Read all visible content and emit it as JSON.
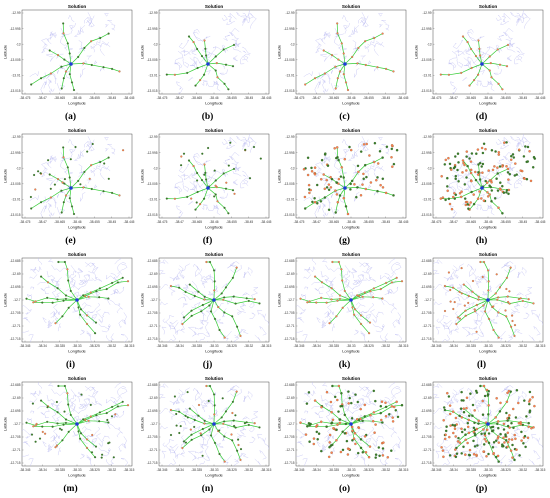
{
  "panels": [
    {
      "caption": "(a)",
      "title": "Solution",
      "xlabel": "Longitude",
      "ylabel": "Latitude",
      "xticks": [
        "-38.475",
        "-38.47",
        "-38.465",
        "-38.46",
        "-38.455",
        "-38.45",
        "-38.445"
      ],
      "yticks": [
        "-12.99",
        "-12.995",
        "-13",
        "-13.005",
        "-13.01",
        "-13.015"
      ],
      "density": "low",
      "mode": "green"
    },
    {
      "caption": "(b)",
      "title": "Solution",
      "xlabel": "Longitude",
      "ylabel": "Latitude",
      "xticks": [
        "-38.475",
        "-38.47",
        "-38.465",
        "-38.46",
        "-38.455",
        "-38.45",
        "-38.445"
      ],
      "yticks": [
        "-12.99",
        "-12.995",
        "-13",
        "-13.005",
        "-13.01",
        "-13.015"
      ],
      "density": "low",
      "mode": "green"
    },
    {
      "caption": "(c)",
      "title": "Solution",
      "xlabel": "Longitude",
      "ylabel": "Latitude",
      "xticks": [
        "-38.475",
        "-38.47",
        "-38.465",
        "-38.46",
        "-38.455",
        "-38.45",
        "-38.445"
      ],
      "yticks": [
        "-12.99",
        "-12.995",
        "-13",
        "-13.005",
        "-13.01",
        "-13.015"
      ],
      "density": "low",
      "mode": "orange"
    },
    {
      "caption": "(d)",
      "title": "Solution",
      "xlabel": "Longitude",
      "ylabel": "Latitude",
      "xticks": [
        "-38.475",
        "-38.47",
        "-38.465",
        "-38.46",
        "-38.455",
        "-38.45",
        "-38.445"
      ],
      "yticks": [
        "-12.99",
        "-12.995",
        "-13",
        "-13.005",
        "-13.01",
        "-13.015"
      ],
      "density": "low",
      "mode": "orange"
    },
    {
      "caption": "(e)",
      "title": "Solution",
      "xlabel": "Longitude",
      "ylabel": "Latitude",
      "xticks": [
        "-38.475",
        "-38.47",
        "-38.465",
        "-38.46",
        "-38.455",
        "-38.45",
        "-38.445"
      ],
      "yticks": [
        "-12.99",
        "-12.995",
        "-13",
        "-13.005",
        "-13.01",
        "-13.015"
      ],
      "density": "mid",
      "mode": "green"
    },
    {
      "caption": "(f)",
      "title": "Solution",
      "xlabel": "Longitude",
      "ylabel": "Latitude",
      "xticks": [
        "-38.475",
        "-38.47",
        "-38.465",
        "-38.46",
        "-38.455",
        "-38.45",
        "-38.445"
      ],
      "yticks": [
        "-12.99",
        "-12.995",
        "-13",
        "-13.005",
        "-13.01",
        "-13.015"
      ],
      "density": "mid",
      "mode": "green"
    },
    {
      "caption": "(g)",
      "title": "Solution",
      "xlabel": "Longitude",
      "ylabel": "Latitude",
      "xticks": [
        "-38.475",
        "-38.47",
        "-38.465",
        "-38.46",
        "-38.455",
        "-38.45",
        "-38.445"
      ],
      "yticks": [
        "-12.99",
        "-12.995",
        "-13",
        "-13.005",
        "-13.01",
        "-13.015"
      ],
      "density": "high",
      "mode": "dense"
    },
    {
      "caption": "(h)",
      "title": "Solution",
      "xlabel": "Longitude",
      "ylabel": "Latitude",
      "xticks": [
        "-38.475",
        "-38.47",
        "-38.465",
        "-38.46",
        "-38.455",
        "-38.45",
        "-38.445"
      ],
      "yticks": [
        "-12.99",
        "-12.995",
        "-13",
        "-13.005",
        "-13.01",
        "-13.015"
      ],
      "density": "veryhigh",
      "mode": "dense"
    },
    {
      "caption": "(i)",
      "title": "Solution",
      "xlabel": "Longitude",
      "ylabel": "Latitude",
      "xticks": [
        "-38.345",
        "-38.34",
        "-38.335",
        "-38.33",
        "-38.325",
        "-38.32",
        "-38.315"
      ],
      "yticks": [
        "-12.685",
        "-12.69",
        "-12.695",
        "-12.7",
        "-12.705",
        "-12.71",
        "-12.715"
      ],
      "density": "low",
      "mode": "green"
    },
    {
      "caption": "(j)",
      "title": "Solution",
      "xlabel": "Longitude",
      "ylabel": "Latitude",
      "xticks": [
        "-38.345",
        "-38.34",
        "-38.335",
        "-38.33",
        "-38.325",
        "-38.32",
        "-38.315"
      ],
      "yticks": [
        "-12.685",
        "-12.69",
        "-12.695",
        "-12.7",
        "-12.705",
        "-12.71",
        "-12.715"
      ],
      "density": "low",
      "mode": "green"
    },
    {
      "caption": "(k)",
      "title": "Solution",
      "xlabel": "Longitude",
      "ylabel": "Latitude",
      "xticks": [
        "-38.345",
        "-38.34",
        "-38.335",
        "-38.33",
        "-38.325",
        "-38.32",
        "-38.315"
      ],
      "yticks": [
        "-12.685",
        "-12.69",
        "-12.695",
        "-12.7",
        "-12.705",
        "-12.71",
        "-12.715"
      ],
      "density": "low",
      "mode": "orange"
    },
    {
      "caption": "(l)",
      "title": "Solution",
      "xlabel": "Longitude",
      "ylabel": "Latitude",
      "xticks": [
        "-38.345",
        "-38.34",
        "-38.335",
        "-38.33",
        "-38.325",
        "-38.32",
        "-38.315"
      ],
      "yticks": [
        "-12.685",
        "-12.69",
        "-12.695",
        "-12.7",
        "-12.705",
        "-12.71",
        "-12.715"
      ],
      "density": "mid",
      "mode": "orange"
    },
    {
      "caption": "(m)",
      "title": "Solution",
      "xlabel": "Longitude",
      "ylabel": "Latitude",
      "xticks": [
        "-38.345",
        "-38.34",
        "-38.335",
        "-38.33",
        "-38.325",
        "-38.32",
        "-38.315"
      ],
      "yticks": [
        "-12.685",
        "-12.69",
        "-12.695",
        "-12.7",
        "-12.705",
        "-12.71",
        "-12.715"
      ],
      "density": "mid",
      "mode": "green"
    },
    {
      "caption": "(n)",
      "title": "Solution",
      "xlabel": "Longitude",
      "ylabel": "Latitude",
      "xticks": [
        "-38.345",
        "-38.34",
        "-38.335",
        "-38.33",
        "-38.325",
        "-38.32",
        "-38.315"
      ],
      "yticks": [
        "-12.685",
        "-12.69",
        "-12.695",
        "-12.7",
        "-12.705",
        "-12.71",
        "-12.715"
      ],
      "density": "mid",
      "mode": "green"
    },
    {
      "caption": "(o)",
      "title": "Solution",
      "xlabel": "Longitude",
      "ylabel": "Latitude",
      "xticks": [
        "-38.345",
        "-38.34",
        "-38.335",
        "-38.33",
        "-38.325",
        "-38.32",
        "-38.315"
      ],
      "yticks": [
        "-12.685",
        "-12.69",
        "-12.695",
        "-12.7",
        "-12.705",
        "-12.71",
        "-12.715"
      ],
      "density": "high",
      "mode": "dense"
    },
    {
      "caption": "(p)",
      "title": "Solution",
      "xlabel": "Longitude",
      "ylabel": "Latitude",
      "xticks": [
        "-38.345",
        "-38.34",
        "-38.335",
        "-38.33",
        "-38.325",
        "-38.32",
        "-38.315"
      ],
      "yticks": [
        "-12.685",
        "-12.69",
        "-12.695",
        "-12.7",
        "-12.705",
        "-12.71",
        "-12.715"
      ],
      "density": "veryhigh",
      "mode": "dense"
    }
  ],
  "colors": {
    "road": "#b9b9f0",
    "route": "#33cc33",
    "node": "#ff7f50",
    "node_green": "#3a7d2a",
    "depot": "#1f3bd6",
    "frame": "#222222"
  }
}
